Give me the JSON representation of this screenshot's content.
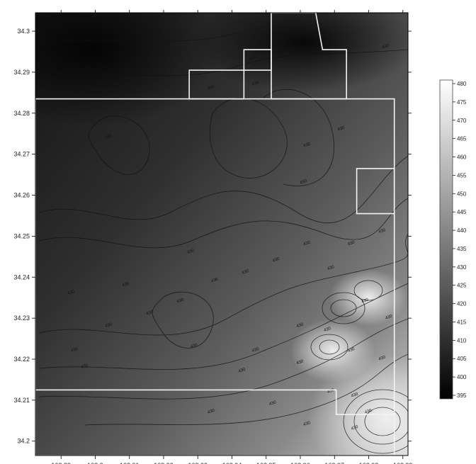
{
  "chart_data": {
    "type": "heatmap",
    "title": "",
    "xlabel": "",
    "ylabel": "",
    "x_ticks": [
      "108.89",
      "108.9",
      "108.91",
      "108.92",
      "108.93",
      "108.94",
      "108.95",
      "108.96",
      "108.97",
      "108.98",
      "108.99"
    ],
    "y_ticks": [
      "34.3",
      "34.29",
      "34.28",
      "34.27",
      "34.26",
      "34.25",
      "34.24",
      "34.23",
      "34.22",
      "34.21",
      "34.2"
    ],
    "xlim": [
      108.8825,
      108.9915
    ],
    "ylim": [
      34.1965,
      34.3045
    ],
    "colorbar": {
      "labels": [
        "480",
        "475",
        "470",
        "465",
        "460",
        "455",
        "450",
        "445",
        "440",
        "435",
        "430",
        "425",
        "420",
        "415",
        "410",
        "405",
        "400",
        "395"
      ],
      "min": 395,
      "max": 480,
      "colormap": "grayscale (black = low, white = high)"
    },
    "contour_labels": [
      {
        "text": "430",
        "x": 108.893,
        "y": 34.236
      },
      {
        "text": "430",
        "x": 108.894,
        "y": 34.222
      },
      {
        "text": "430",
        "x": 108.897,
        "y": 34.218
      },
      {
        "text": "430",
        "x": 108.904,
        "y": 34.228
      },
      {
        "text": "430",
        "x": 108.909,
        "y": 34.238
      },
      {
        "text": "430",
        "x": 108.916,
        "y": 34.231
      },
      {
        "text": "430",
        "x": 108.925,
        "y": 34.234
      },
      {
        "text": "430",
        "x": 108.928,
        "y": 34.246
      },
      {
        "text": "430",
        "x": 108.929,
        "y": 34.223
      },
      {
        "text": "430",
        "x": 108.935,
        "y": 34.239
      },
      {
        "text": "430",
        "x": 108.944,
        "y": 34.241
      },
      {
        "text": "430",
        "x": 108.947,
        "y": 34.222
      },
      {
        "text": "430",
        "x": 108.953,
        "y": 34.244
      },
      {
        "text": "430",
        "x": 108.962,
        "y": 34.248
      },
      {
        "text": "430",
        "x": 108.969,
        "y": 34.242
      },
      {
        "text": "430",
        "x": 108.975,
        "y": 34.248
      },
      {
        "text": "430",
        "x": 108.984,
        "y": 34.251
      },
      {
        "text": "430",
        "x": 108.962,
        "y": 34.272
      },
      {
        "text": "430",
        "x": 108.961,
        "y": 34.263
      },
      {
        "text": "430",
        "x": 108.972,
        "y": 34.276
      },
      {
        "text": "430",
        "x": 108.904,
        "y": 34.274
      },
      {
        "text": "430",
        "x": 108.898,
        "y": 34.291
      },
      {
        "text": "430",
        "x": 108.908,
        "y": 34.294
      },
      {
        "text": "430",
        "x": 108.934,
        "y": 34.286
      },
      {
        "text": "430",
        "x": 108.947,
        "y": 34.287
      },
      {
        "text": "430",
        "x": 108.946,
        "y": 34.293
      },
      {
        "text": "430",
        "x": 108.962,
        "y": 34.296
      },
      {
        "text": "430",
        "x": 108.985,
        "y": 34.296
      },
      {
        "text": "430",
        "x": 108.943,
        "y": 34.217
      },
      {
        "text": "430",
        "x": 108.96,
        "y": 34.219
      },
      {
        "text": "430",
        "x": 108.968,
        "y": 34.227
      },
      {
        "text": "430",
        "x": 108.979,
        "y": 34.234
      },
      {
        "text": "430",
        "x": 108.986,
        "y": 34.23
      },
      {
        "text": "430",
        "x": 108.969,
        "y": 34.212
      },
      {
        "text": "430",
        "x": 108.976,
        "y": 34.211
      },
      {
        "text": "430",
        "x": 108.984,
        "y": 34.22
      },
      {
        "text": "430",
        "x": 108.98,
        "y": 34.207
      },
      {
        "text": "430",
        "x": 108.952,
        "y": 34.209
      },
      {
        "text": "430",
        "x": 108.962,
        "y": 34.204
      },
      {
        "text": "430",
        "x": 108.976,
        "y": 34.203
      },
      {
        "text": "430",
        "x": 108.934,
        "y": 34.207
      },
      {
        "text": "430",
        "x": 108.96,
        "y": 34.228
      },
      {
        "text": "430",
        "x": 108.975,
        "y": 34.222
      }
    ],
    "boundary_polygons": [
      [
        [
          108.8825,
          34.2835
        ],
        [
          108.9875,
          34.2835
        ],
        [
          108.9875,
          34.1965
        ],
        [
          108.8825,
          34.1965
        ]
      ],
      [
        [
          108.9275,
          34.2835
        ],
        [
          108.9275,
          34.2905
        ],
        [
          108.9435,
          34.2905
        ],
        [
          108.9435,
          34.2835
        ]
      ],
      [
        [
          108.9515,
          34.2905
        ],
        [
          108.9435,
          34.2905
        ],
        [
          108.9435,
          34.2955
        ],
        [
          108.9515,
          34.2955
        ]
      ],
      [
        [
          108.9515,
          34.2835
        ],
        [
          108.9515,
          34.3045
        ],
        [
          108.9645,
          34.3045
        ],
        [
          108.9665,
          34.2955
        ],
        [
          108.9735,
          34.2955
        ],
        [
          108.9735,
          34.2835
        ]
      ],
      [
        [
          108.9765,
          34.2665
        ],
        [
          108.9875,
          34.2665
        ],
        [
          108.9875,
          34.2555
        ],
        [
          108.9765,
          34.2555
        ]
      ],
      [
        [
          108.8825,
          34.2125
        ],
        [
          108.9705,
          34.2125
        ],
        [
          108.9705,
          34.2065
        ],
        [
          108.9875,
          34.2065
        ],
        [
          108.9875,
          34.2125
        ]
      ]
    ]
  }
}
